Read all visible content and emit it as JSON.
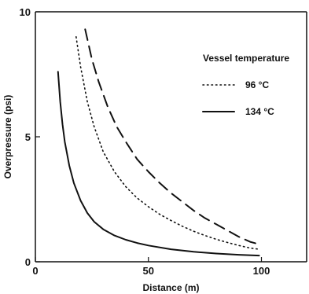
{
  "chart_data": {
    "type": "line",
    "title": "",
    "xlabel": "Distance (m)",
    "ylabel": "Overpressure (psi)",
    "xlim": [
      0,
      120
    ],
    "ylim": [
      0,
      10
    ],
    "xticks": [
      0,
      50,
      100
    ],
    "yticks": [
      0,
      5,
      10
    ],
    "grid": false,
    "legend_title": "Vessel temperature",
    "legend_position": "right",
    "series": [
      {
        "name": "",
        "style": "dashed",
        "color": "#111111",
        "x": [
          22,
          25,
          28,
          32,
          36,
          40,
          45,
          50,
          55,
          60,
          65,
          70,
          75,
          80,
          85,
          90,
          95,
          99
        ],
        "y": [
          9.3,
          8.1,
          7.2,
          6.2,
          5.4,
          4.8,
          4.1,
          3.6,
          3.15,
          2.75,
          2.4,
          2.05,
          1.75,
          1.5,
          1.25,
          1.0,
          0.8,
          0.7
        ]
      },
      {
        "name": "96 °C",
        "style": "dotted",
        "color": "#111111",
        "x": [
          18,
          20,
          23,
          26,
          30,
          35,
          40,
          45,
          50,
          55,
          60,
          65,
          70,
          75,
          80,
          85,
          90,
          95,
          99
        ],
        "y": [
          9.0,
          7.8,
          6.4,
          5.4,
          4.4,
          3.6,
          3.0,
          2.55,
          2.2,
          1.9,
          1.65,
          1.42,
          1.22,
          1.05,
          0.9,
          0.77,
          0.65,
          0.55,
          0.5
        ]
      },
      {
        "name": "134 °C",
        "style": "solid",
        "color": "#111111",
        "x": [
          10,
          11,
          12,
          13,
          15,
          17,
          20,
          23,
          26,
          30,
          35,
          40,
          45,
          50,
          60,
          70,
          80,
          90,
          99
        ],
        "y": [
          7.6,
          6.4,
          5.5,
          4.8,
          3.85,
          3.15,
          2.45,
          1.95,
          1.6,
          1.3,
          1.05,
          0.88,
          0.75,
          0.65,
          0.5,
          0.4,
          0.33,
          0.28,
          0.25
        ]
      }
    ]
  }
}
